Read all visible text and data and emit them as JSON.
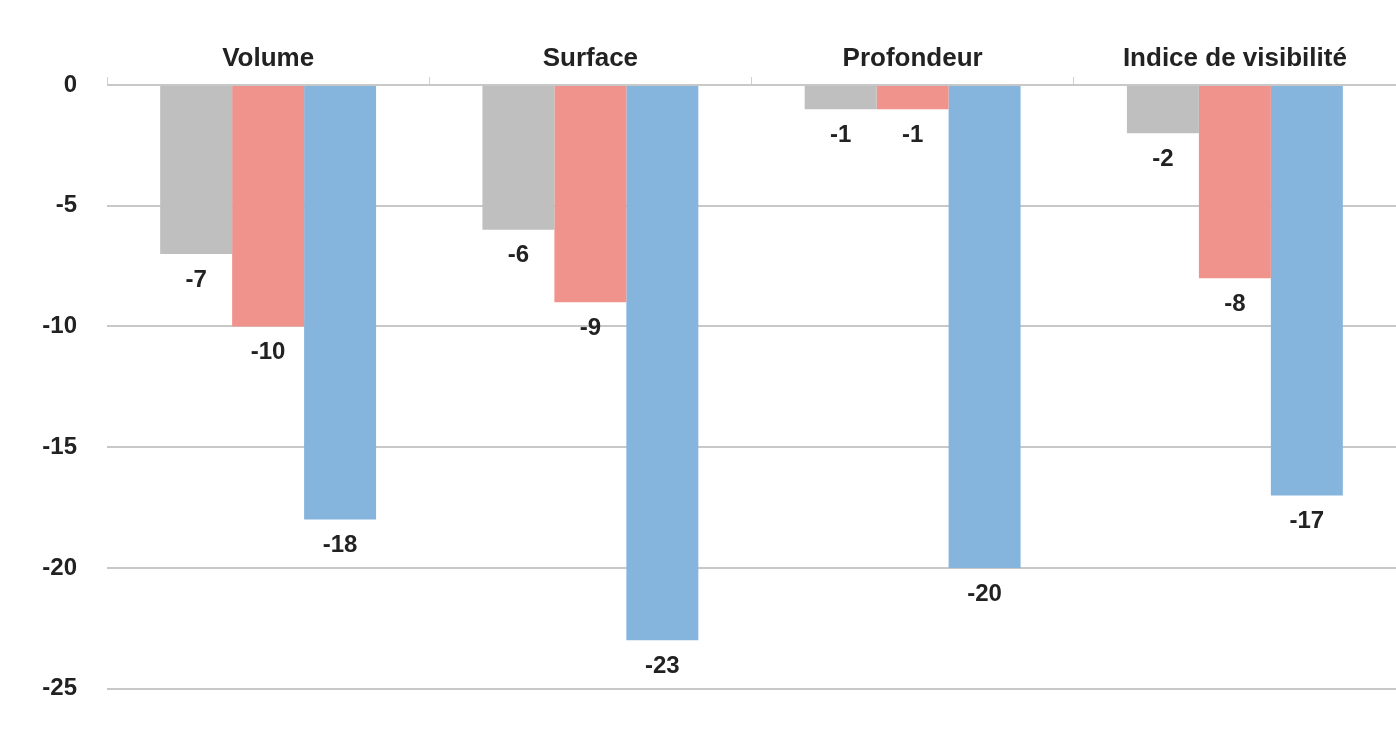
{
  "chart_data": {
    "type": "bar",
    "categories": [
      "Volume",
      "Surface",
      "Profondeur",
      "Indice de visibilité"
    ],
    "series": [
      {
        "color": "#bfbfbf",
        "values": [
          -7,
          -6,
          -1,
          -2
        ]
      },
      {
        "color": "#f0938c",
        "values": [
          -10,
          -9,
          -1,
          -8
        ]
      },
      {
        "color": "#85b4dc",
        "values": [
          -18,
          -23,
          -20,
          -17
        ]
      }
    ],
    "ylim": [
      -25,
      0
    ],
    "yticks": [
      -25,
      -20,
      -15,
      -10,
      -5,
      0
    ],
    "grid": "y",
    "legend": false,
    "data_labels": true
  }
}
